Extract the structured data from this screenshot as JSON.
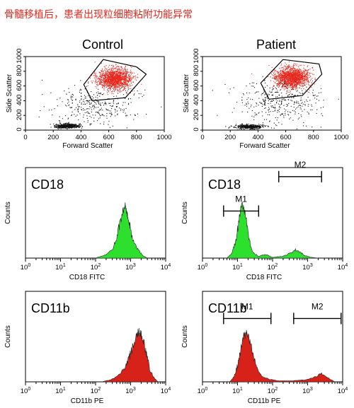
{
  "headline": "骨髓移植后，患者出现粒细胞粘附功能异常",
  "columns": [
    "Control",
    "Patient"
  ],
  "chart_data": [
    {
      "id": "scatter-control",
      "type": "scatter",
      "title": "Control",
      "xlabel": "Forward Scatter",
      "ylabel": "Side Scatter",
      "xlim": [
        0,
        1000
      ],
      "ylim": [
        0,
        1000
      ],
      "x_ticks": [
        0,
        200,
        400,
        600,
        800,
        1000
      ],
      "y_ticks": [
        0,
        200,
        400,
        600,
        800,
        1000
      ],
      "gate_polygon": [
        [
          420,
          620
        ],
        [
          560,
          960
        ],
        [
          800,
          860
        ],
        [
          870,
          760
        ],
        [
          720,
          440
        ],
        [
          480,
          400
        ]
      ],
      "populations": [
        {
          "name": "granulocytes",
          "color": "#e8261c",
          "center": [
            640,
            700
          ],
          "spread": [
            100,
            120
          ],
          "count": 1400
        },
        {
          "name": "lymphocytes",
          "color": "#111111",
          "center": [
            300,
            60
          ],
          "spread": [
            70,
            25
          ],
          "count": 500
        },
        {
          "name": "background",
          "color": "#111111",
          "center": [
            500,
            350
          ],
          "spread": [
            250,
            220
          ],
          "count": 350
        }
      ]
    },
    {
      "id": "scatter-patient",
      "type": "scatter",
      "title": "Patient",
      "xlabel": "Forward Scatter",
      "ylabel": "Side Scatter",
      "xlim": [
        0,
        1000
      ],
      "ylim": [
        0,
        1000
      ],
      "x_ticks": [
        0,
        200,
        400,
        600,
        800,
        1000
      ],
      "y_ticks": [
        0,
        200,
        400,
        600,
        800,
        1000
      ],
      "gate_polygon": [
        [
          420,
          640
        ],
        [
          580,
          960
        ],
        [
          840,
          900
        ],
        [
          860,
          760
        ],
        [
          720,
          470
        ],
        [
          480,
          420
        ]
      ],
      "populations": [
        {
          "name": "granulocytes",
          "color": "#e8261c",
          "center": [
            640,
            720
          ],
          "spread": [
            100,
            110
          ],
          "count": 1500
        },
        {
          "name": "lymphocytes",
          "color": "#111111",
          "center": [
            340,
            50
          ],
          "spread": [
            80,
            25
          ],
          "count": 450
        },
        {
          "name": "background",
          "color": "#111111",
          "center": [
            560,
            380
          ],
          "spread": [
            260,
            230
          ],
          "count": 380
        }
      ]
    },
    {
      "id": "cd18-control",
      "type": "area",
      "title": "CD18",
      "xlabel": "CD18 FITC",
      "ylabel": "Counts",
      "x_scale": "log",
      "xlim": [
        1,
        10000
      ],
      "ylim": [
        0,
        100
      ],
      "x_ticks": [
        "10^0",
        "10^1",
        "10^2",
        "10^3",
        "10^4"
      ],
      "color": "#2ee02e",
      "x": [
        100,
        200,
        300,
        400,
        500,
        600,
        700,
        800,
        900,
        1000,
        1300,
        1700,
        2200,
        3000
      ],
      "y": [
        0,
        4,
        10,
        22,
        40,
        52,
        58,
        50,
        42,
        30,
        16,
        8,
        3,
        0
      ],
      "markers": []
    },
    {
      "id": "cd18-patient",
      "type": "area",
      "title": "CD18",
      "xlabel": "CD18 FITC",
      "ylabel": "Counts",
      "x_scale": "log",
      "xlim": [
        1,
        10000
      ],
      "ylim": [
        0,
        100
      ],
      "x_ticks": [
        "10^0",
        "10^1",
        "10^2",
        "10^3",
        "10^4"
      ],
      "color": "#2ee02e",
      "x": [
        5,
        7,
        9,
        11,
        13,
        15,
        18,
        22,
        28,
        40,
        60,
        100,
        200,
        300,
        450,
        600,
        800,
        1200,
        2000
      ],
      "y": [
        0,
        6,
        20,
        42,
        58,
        55,
        40,
        18,
        6,
        2,
        4,
        1,
        2,
        5,
        9,
        7,
        3,
        1,
        0
      ],
      "markers": [
        {
          "label": "M1",
          "from": 4,
          "to": 40,
          "level": 52
        },
        {
          "label": "M2",
          "from": 150,
          "to": 2500,
          "level": 90
        }
      ]
    },
    {
      "id": "cd11b-control",
      "type": "area",
      "title": "CD11b",
      "xlabel": "CD11b PE",
      "ylabel": "Counts",
      "x_scale": "log",
      "xlim": [
        1,
        10000
      ],
      "ylim": [
        0,
        100
      ],
      "x_ticks": [
        "10^0",
        "10^1",
        "10^2",
        "10^3",
        "10^4"
      ],
      "color": "#d7221a",
      "x": [
        150,
        300,
        500,
        700,
        900,
        1100,
        1400,
        1700,
        2000,
        2400,
        2900,
        3500,
        4500,
        6000
      ],
      "y": [
        0,
        3,
        8,
        16,
        26,
        36,
        48,
        56,
        52,
        44,
        28,
        14,
        5,
        0
      ],
      "markers": []
    },
    {
      "id": "cd11b-patient",
      "type": "area",
      "title": "CD11b",
      "xlabel": "CD11b PE",
      "ylabel": "Counts",
      "x_scale": "log",
      "xlim": [
        1,
        10000
      ],
      "ylim": [
        0,
        100
      ],
      "x_ticks": [
        "10^0",
        "10^1",
        "10^2",
        "10^3",
        "10^4"
      ],
      "color": "#d7221a",
      "x": [
        6,
        8,
        10,
        12,
        15,
        18,
        22,
        28,
        35,
        50,
        80,
        150,
        300,
        800,
        1500,
        2500,
        4000,
        6000
      ],
      "y": [
        0,
        6,
        18,
        34,
        50,
        54,
        45,
        30,
        16,
        6,
        3,
        1,
        1,
        2,
        5,
        9,
        4,
        0
      ],
      "markers": [
        {
          "label": "M1",
          "from": 4,
          "to": 90,
          "level": 70
        },
        {
          "label": "M2",
          "from": 400,
          "to": 9000,
          "level": 70
        }
      ]
    }
  ]
}
